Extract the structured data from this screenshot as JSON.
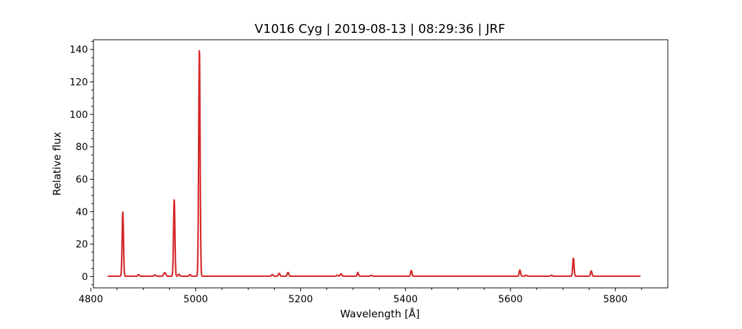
{
  "chart_data": {
    "type": "line",
    "title": "V1016 Cyg | 2019-08-13 | 08:29:36 | JRF",
    "xlabel": "Wavelength [Å]",
    "ylabel": "Relative flux",
    "xlim": [
      4805,
      5900
    ],
    "ylim": [
      -7,
      146
    ],
    "xticks": [
      4800,
      5000,
      5200,
      5400,
      5600,
      5800
    ],
    "yticks": [
      0,
      20,
      40,
      60,
      80,
      100,
      120,
      140
    ],
    "grid": false,
    "line_color": "#d62728",
    "x_range": [
      4832,
      5848
    ],
    "baseline": 0.2,
    "series": [
      {
        "lines": [
          {
            "center": 4861,
            "peak": 39.5,
            "sigma": 1.3
          },
          {
            "center": 4891,
            "peak": 1.0,
            "sigma": 1.5
          },
          {
            "center": 4922,
            "peak": 0.8,
            "sigma": 1.5
          },
          {
            "center": 4941,
            "peak": 2.2,
            "sigma": 2.0
          },
          {
            "center": 4959,
            "peak": 47.0,
            "sigma": 1.3
          },
          {
            "center": 4968,
            "peak": 1.2,
            "sigma": 1.5
          },
          {
            "center": 4989,
            "peak": 1.0,
            "sigma": 1.5
          },
          {
            "center": 5007,
            "peak": 139.0,
            "sigma": 1.35
          },
          {
            "center": 5146,
            "peak": 1.0,
            "sigma": 1.5
          },
          {
            "center": 5159,
            "peak": 1.8,
            "sigma": 1.5
          },
          {
            "center": 5176,
            "peak": 2.3,
            "sigma": 1.5
          },
          {
            "center": 5270,
            "peak": 0.6,
            "sigma": 1.5
          },
          {
            "center": 5277,
            "peak": 1.5,
            "sigma": 1.5
          },
          {
            "center": 5309,
            "peak": 2.3,
            "sigma": 1.3
          },
          {
            "center": 5335,
            "peak": 0.6,
            "sigma": 1.5
          },
          {
            "center": 5411,
            "peak": 3.5,
            "sigma": 1.3
          },
          {
            "center": 5618,
            "peak": 3.8,
            "sigma": 1.3
          },
          {
            "center": 5630,
            "peak": 0.6,
            "sigma": 1.5
          },
          {
            "center": 5678,
            "peak": 0.6,
            "sigma": 1.5
          },
          {
            "center": 5720,
            "peak": 11.0,
            "sigma": 1.3
          },
          {
            "center": 5754,
            "peak": 3.2,
            "sigma": 1.4
          }
        ]
      }
    ]
  }
}
